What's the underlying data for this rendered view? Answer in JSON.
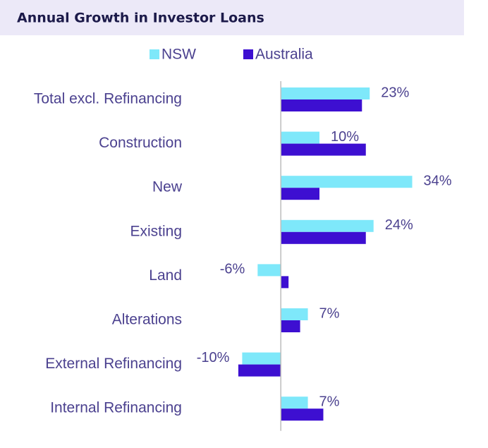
{
  "chart_data": {
    "type": "hbar",
    "title": "Annual Growth in Investor Loans",
    "categories": [
      "Total excl. Refinancing",
      "Construction",
      "New",
      "Existing",
      "Land",
      "Alterations",
      "External Refinancing",
      "Internal Refinancing"
    ],
    "series": [
      {
        "name": "NSW",
        "color": "#7ee8fa",
        "values": [
          23,
          10,
          34,
          24,
          -6,
          7,
          -10,
          7
        ],
        "value_labels": [
          "23%",
          "10%",
          "34%",
          "24%",
          "-6%",
          "7%",
          "-10%",
          "7%"
        ]
      },
      {
        "name": "Australia",
        "color": "#3d0fd1",
        "values": [
          21,
          22,
          10,
          22,
          2,
          5,
          -11,
          11
        ]
      }
    ],
    "xlim": [
      -15,
      35
    ]
  }
}
